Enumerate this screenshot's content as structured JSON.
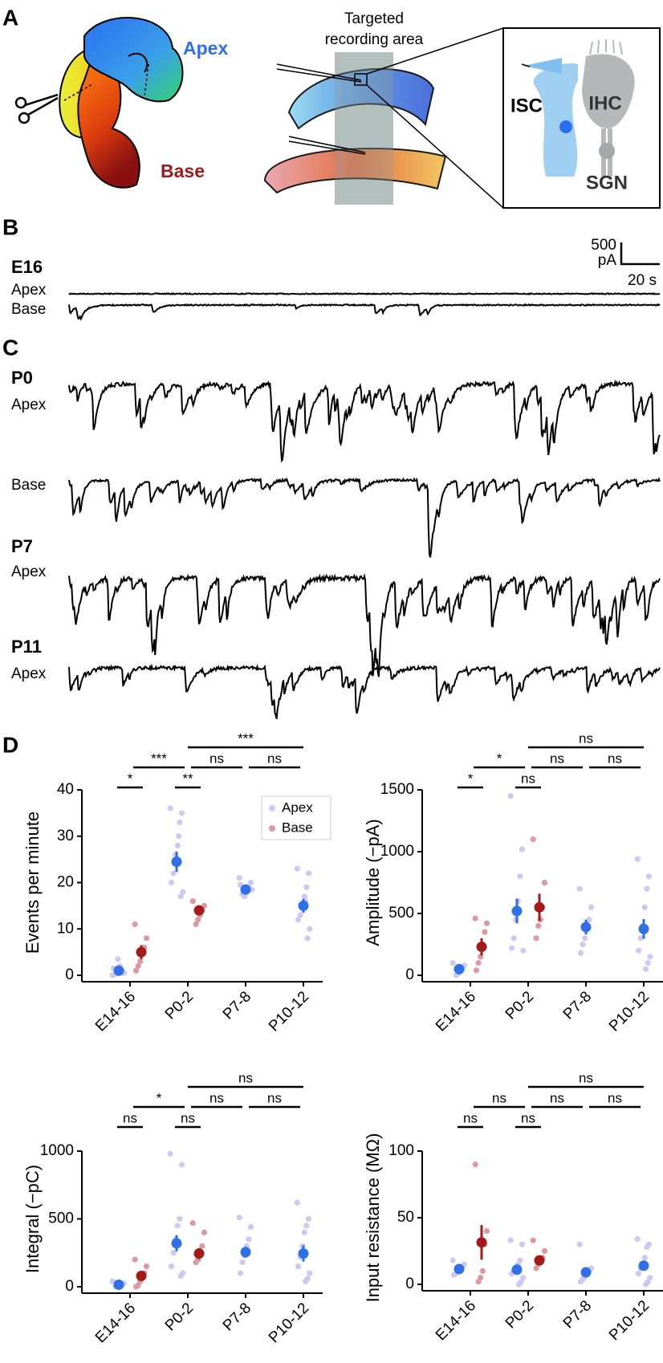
{
  "panel_labels": [
    "A",
    "B",
    "C",
    "D"
  ],
  "panel_a": {
    "apex": "Apex",
    "base": "Base",
    "area_label": [
      "Targeted",
      "recording area"
    ],
    "cells": [
      "ISC",
      "IHC",
      "SGN"
    ]
  },
  "traces": [
    {
      "stage": "E16",
      "rows": [
        "Apex",
        "Base"
      ]
    },
    {
      "stage": "P0",
      "rows": [
        "Apex",
        "Base"
      ]
    },
    {
      "stage": "P7",
      "rows": [
        "Apex"
      ]
    },
    {
      "stage": "P11",
      "rows": [
        "Apex"
      ]
    }
  ],
  "scale_bar": {
    "amplitude": [
      "500",
      "pA"
    ],
    "time": "20 s"
  },
  "chart_data": [
    {
      "type": "strip",
      "y_label": "Events per minute",
      "categories": [
        "E14-16",
        "P0-2",
        "P7-8",
        "P10-12"
      ],
      "ylim": [
        0,
        40
      ],
      "yticks": [
        0,
        10,
        20,
        30,
        40
      ],
      "legend": "upper right",
      "series": [
        {
          "name": "Apex",
          "color": "#2f6fe8",
          "point_color": "#cdc9f1",
          "values": [
            1,
            24.5,
            18.5,
            15
          ],
          "errors": [
            0.7,
            2.2,
            1,
            1.5
          ],
          "points": [
            [
              0,
              0.5,
              1,
              2,
              3.5,
              0.3,
              1.5
            ],
            [
              36,
              35,
              33,
              28,
              26,
              22,
              20,
              18,
              17,
              30
            ],
            [
              21,
              20,
              19,
              18,
              17,
              17.5,
              19.5,
              18.5
            ],
            [
              23,
              22,
              19,
              17,
              15,
              13,
              12,
              10,
              8,
              16
            ]
          ]
        },
        {
          "name": "Base",
          "color": "#a31a1a",
          "point_color": "#dc9aa2",
          "values": [
            5,
            14,
            null,
            null
          ],
          "errors": [
            1.5,
            1,
            null,
            null
          ],
          "points": [
            [
              11,
              8,
              6,
              5,
              3,
              2,
              1
            ],
            [
              16,
              15,
              14,
              13,
              12,
              11
            ],
            [],
            []
          ]
        }
      ],
      "annotations": [
        {
          "label": "*",
          "pair": [
            0,
            0
          ]
        },
        {
          "label": "**",
          "pair": [
            1,
            1
          ]
        },
        {
          "label": "***",
          "pair": [
            0,
            1
          ]
        },
        {
          "label": "ns",
          "pair": [
            1,
            2
          ]
        },
        {
          "label": "ns",
          "pair": [
            2,
            3
          ]
        },
        {
          "label": "***",
          "pair": [
            1,
            3
          ]
        }
      ]
    },
    {
      "type": "strip",
      "y_label": "Amplitude (−pA)",
      "categories": [
        "E14-16",
        "P0-2",
        "P7-8",
        "P10-12"
      ],
      "ylim": [
        0,
        1500
      ],
      "yticks": [
        0,
        500,
        1000,
        1500
      ],
      "series": [
        {
          "name": "Apex",
          "color": "#2f6fe8",
          "point_color": "#cdc9f1",
          "values": [
            50,
            520,
            390,
            375
          ],
          "errors": [
            30,
            100,
            60,
            80
          ],
          "points": [
            [
              100,
              80,
              50,
              30,
              10,
              0
            ],
            [
              1450,
              1020,
              800,
              600,
              450,
              300,
              220,
              200
            ],
            [
              700,
              550,
              450,
              400,
              300,
              250,
              180
            ],
            [
              940,
              800,
              700,
              550,
              400,
              300,
              200,
              150,
              100,
              50
            ]
          ]
        },
        {
          "name": "Base",
          "color": "#a31a1a",
          "point_color": "#dc9aa2",
          "values": [
            230,
            550,
            null,
            null
          ],
          "errors": [
            70,
            110,
            null,
            null
          ],
          "points": [
            [
              460,
              420,
              350,
              250,
              150,
              100,
              40
            ],
            [
              1100,
              750,
              550,
              450,
              400,
              300
            ],
            [],
            []
          ]
        }
      ],
      "annotations": [
        {
          "label": "*",
          "pair": [
            0,
            0
          ]
        },
        {
          "label": "ns",
          "pair": [
            1,
            1
          ]
        },
        {
          "label": "*",
          "pair": [
            0,
            1
          ]
        },
        {
          "label": "ns",
          "pair": [
            1,
            2
          ]
        },
        {
          "label": "ns",
          "pair": [
            2,
            3
          ]
        },
        {
          "label": "ns",
          "pair": [
            1,
            3
          ]
        }
      ]
    },
    {
      "type": "strip",
      "y_label": "Integral (−pC)",
      "categories": [
        "E14-16",
        "P0-2",
        "P7-8",
        "P10-12"
      ],
      "ylim": [
        0,
        1000
      ],
      "yticks": [
        0,
        500,
        1000
      ],
      "series": [
        {
          "name": "Apex",
          "color": "#2f6fe8",
          "point_color": "#cdc9f1",
          "values": [
            15,
            320,
            255,
            245
          ],
          "errors": [
            10,
            60,
            40,
            60
          ],
          "points": [
            [
              40,
              25,
              15,
              10,
              5,
              0
            ],
            [
              980,
              900,
              500,
              450,
              350,
              250,
              150,
              100,
              80
            ],
            [
              510,
              440,
              350,
              300,
              230,
              180,
              100
            ],
            [
              620,
              500,
              450,
              400,
              300,
              220,
              150,
              100,
              60,
              40
            ]
          ]
        },
        {
          "name": "Base",
          "color": "#a31a1a",
          "point_color": "#dc9aa2",
          "values": [
            80,
            245,
            null,
            null
          ],
          "errors": [
            35,
            40,
            null,
            null
          ],
          "points": [
            [
              200,
              150,
              100,
              70,
              40,
              10,
              0
            ],
            [
              470,
              400,
              300,
              250,
              200,
              180
            ],
            [],
            []
          ]
        }
      ],
      "annotations": [
        {
          "label": "ns",
          "pair": [
            0,
            0
          ]
        },
        {
          "label": "ns",
          "pair": [
            1,
            1
          ]
        },
        {
          "label": "*",
          "pair": [
            0,
            1
          ]
        },
        {
          "label": "ns",
          "pair": [
            1,
            2
          ]
        },
        {
          "label": "ns",
          "pair": [
            2,
            3
          ]
        },
        {
          "label": "ns",
          "pair": [
            1,
            3
          ]
        }
      ]
    },
    {
      "type": "strip",
      "y_label": "Input resistance (MΩ)",
      "categories": [
        "E14-16",
        "P0-2",
        "P7-8",
        "P10-12"
      ],
      "ylim": [
        0,
        100
      ],
      "yticks": [
        0,
        50,
        100
      ],
      "series": [
        {
          "name": "Apex",
          "color": "#2f6fe8",
          "point_color": "#cdc9f1",
          "values": [
            11.5,
            11,
            9,
            14
          ],
          "errors": [
            2,
            3,
            1.5,
            3
          ],
          "points": [
            [
              18,
              15,
              13,
              12,
              10,
              8,
              7
            ],
            [
              33,
              30,
              18,
              15,
              12,
              10,
              8,
              5,
              2,
              0
            ],
            [
              30,
              12,
              10,
              8,
              6,
              4,
              2
            ],
            [
              34,
              30,
              28,
              20,
              15,
              12,
              8,
              5,
              2,
              0
            ]
          ]
        },
        {
          "name": "Base",
          "color": "#a31a1a",
          "point_color": "#dc9aa2",
          "values": [
            31.5,
            18,
            null,
            null
          ],
          "errors": [
            13,
            3,
            null,
            null
          ],
          "points": [
            [
              90,
              40,
              30,
              10,
              5,
              2
            ],
            [
              33,
              25,
              20,
              18,
              15,
              12
            ],
            [],
            []
          ]
        }
      ],
      "annotations": [
        {
          "label": "ns",
          "pair": [
            0,
            0
          ]
        },
        {
          "label": "ns",
          "pair": [
            1,
            1
          ]
        },
        {
          "label": "ns",
          "pair": [
            0,
            1
          ]
        },
        {
          "label": "ns",
          "pair": [
            1,
            2
          ]
        },
        {
          "label": "ns",
          "pair": [
            2,
            3
          ]
        },
        {
          "label": "ns",
          "pair": [
            1,
            3
          ]
        }
      ]
    }
  ]
}
